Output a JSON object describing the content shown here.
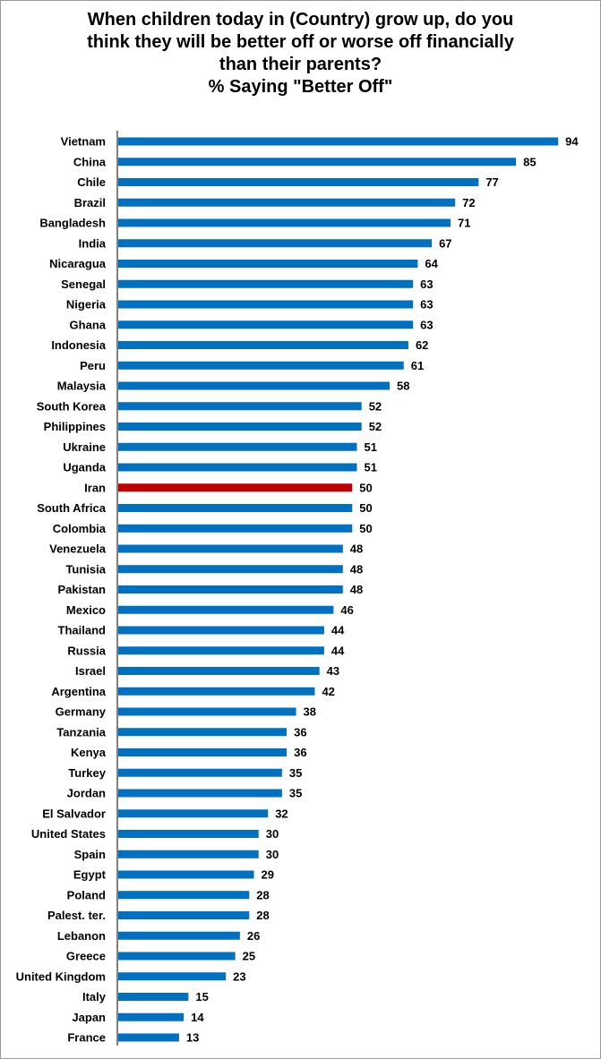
{
  "chart_data": {
    "type": "bar",
    "orientation": "horizontal",
    "title_lines": [
      "When children today in (Country) grow up, do you",
      "think they will be better off or worse off financially",
      "than their parents?",
      "% Saying \"Better Off\""
    ],
    "categories": [
      "Vietnam",
      "China",
      "Chile",
      "Brazil",
      "Bangladesh",
      "India",
      "Nicaragua",
      "Senegal",
      "Nigeria",
      "Ghana",
      "Indonesia",
      "Peru",
      "Malaysia",
      "South Korea",
      "Philippines",
      "Ukraine",
      "Uganda",
      "Iran",
      "South Africa",
      "Colombia",
      "Venezuela",
      "Tunisia",
      "Pakistan",
      "Mexico",
      "Thailand",
      "Russia",
      "Israel",
      "Argentina",
      "Germany",
      "Tanzania",
      "Kenya",
      "Turkey",
      "Jordan",
      "El Salvador",
      "United States",
      "Spain",
      "Egypt",
      "Poland",
      "Palest. ter.",
      "Lebanon",
      "Greece",
      "United Kingdom",
      "Italy",
      "Japan",
      "France"
    ],
    "values": [
      94,
      85,
      77,
      72,
      71,
      67,
      64,
      63,
      63,
      63,
      62,
      61,
      58,
      52,
      52,
      51,
      51,
      50,
      50,
      50,
      48,
      48,
      48,
      46,
      44,
      44,
      43,
      42,
      38,
      36,
      36,
      35,
      35,
      32,
      30,
      30,
      29,
      28,
      28,
      26,
      25,
      23,
      15,
      14,
      13
    ],
    "highlight_category": "Iran",
    "colors": {
      "bar": "#0070C0",
      "highlight": "#C00000"
    },
    "xlim": [
      0,
      100
    ],
    "grid": false,
    "legend": "none",
    "data_labels": true
  }
}
